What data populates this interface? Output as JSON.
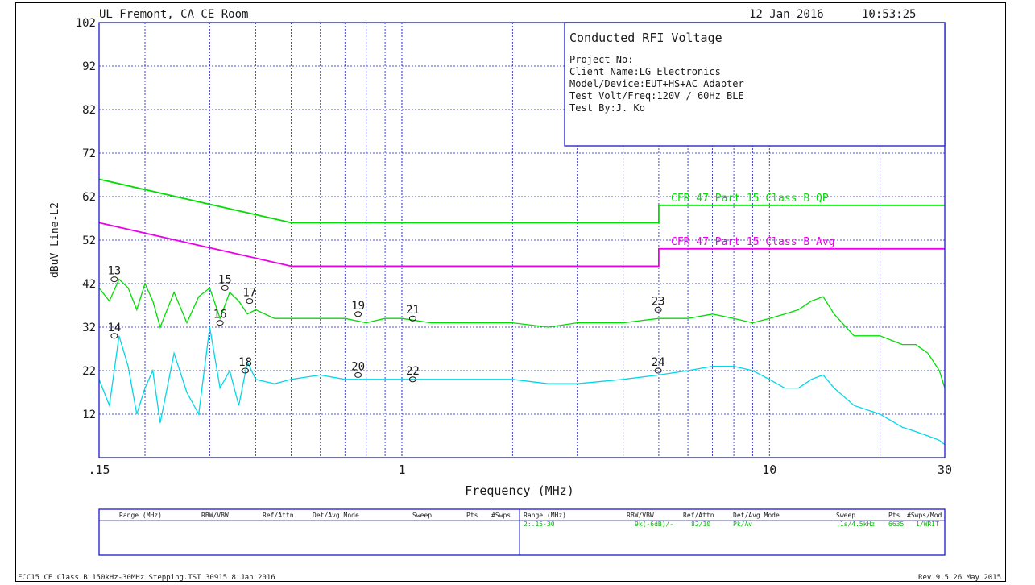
{
  "header": {
    "site": "UL Fremont, CA CE Room",
    "date": "12 Jan 2016",
    "time": "10:53:25"
  },
  "info_box": {
    "title": "Conducted RFI Voltage",
    "lines": [
      "Project No:",
      "Client Name:LG Electronics",
      "Model/Device:EUT+HS+AC Adapter",
      "Test Volt/Freq:120V / 60Hz BLE",
      "Test By:J. Ko"
    ]
  },
  "settings_table": {
    "headers": [
      "Range (MHz)",
      "RBW/VBW",
      "Ref/Attn",
      "Det/Avg Mode",
      "Sweep",
      "Pts",
      "#Swps/Mod"
    ],
    "left_headers": [
      "Range (MHz)",
      "RBW/VBW",
      "Ref/Attn",
      "Det/Avg Mode",
      "Sweep",
      "Pts",
      "#Swps"
    ],
    "row": [
      "2:.15-30",
      "9k(-6dB)/-",
      "82/10",
      "Pk/Av",
      ".1s/4.5kHz",
      "6635",
      "1/WRIT"
    ]
  },
  "footer": {
    "left": "FCC15 CE Class B 150kHz-30MHz Stepping.TST 30915  8 Jan 2016",
    "right": "Rev 9.5 26 May 2015"
  },
  "colors": {
    "peak": "#00dd00",
    "average": "#00d8e8",
    "qp_limit": "#00dd00",
    "avg_limit": "#ee00ee",
    "grid": "#1a1acc",
    "text": "#1a1a1a"
  },
  "chart_data": {
    "type": "line",
    "xscale": "log",
    "xlabel": "Frequency (MHz)",
    "ylabel": "dBuV Line-L2",
    "xlim": [
      0.15,
      30
    ],
    "ylim": [
      2,
      102
    ],
    "xtick_labels": [
      {
        "value": 0.15,
        "label": ".15"
      },
      {
        "value": 1,
        "label": "1"
      },
      {
        "value": 10,
        "label": "10"
      },
      {
        "value": 30,
        "label": "30"
      }
    ],
    "yticks": [
      12,
      22,
      32,
      42,
      52,
      62,
      72,
      82,
      92,
      102
    ],
    "grid": true,
    "limits": [
      {
        "name": "CFR 47 Part 15 Class B QP",
        "x": [
          0.15,
          0.5,
          0.5,
          5,
          5,
          30
        ],
        "y": [
          66,
          56,
          56,
          56,
          60,
          60
        ]
      },
      {
        "name": "CFR 47 Part 15 Class B Avg",
        "x": [
          0.15,
          0.5,
          0.5,
          5,
          5,
          30
        ],
        "y": [
          56,
          46,
          46,
          46,
          50,
          50
        ]
      }
    ],
    "series": [
      {
        "x": [
          0.15,
          0.16,
          0.17,
          0.18,
          0.19,
          0.2,
          0.21,
          0.22,
          0.24,
          0.26,
          0.28,
          0.3,
          0.32,
          0.34,
          0.36,
          0.38,
          0.4,
          0.45,
          0.5,
          0.6,
          0.7,
          0.8,
          0.9,
          1.0,
          1.2,
          1.5,
          2.0,
          2.5,
          3.0,
          4.0,
          5.0,
          6.0,
          7.0,
          8.0,
          9.0,
          10.0,
          11.0,
          12.0,
          13.0,
          14.0,
          15.0,
          17.0,
          20.0,
          23.0,
          25.0,
          27.0,
          29.0,
          30.0
        ],
        "y": [
          41,
          38,
          43,
          41,
          36,
          42,
          38,
          32,
          40,
          33,
          39,
          41,
          34,
          40,
          38,
          35,
          36,
          34,
          34,
          34,
          34,
          33,
          34,
          34,
          33,
          33,
          33,
          32,
          33,
          33,
          34,
          34,
          35,
          34,
          33,
          34,
          35,
          36,
          38,
          39,
          35,
          30,
          30,
          28,
          28,
          26,
          22,
          18
        ]
      },
      {
        "x": [
          0.15,
          0.16,
          0.17,
          0.18,
          0.19,
          0.2,
          0.21,
          0.22,
          0.24,
          0.26,
          0.28,
          0.3,
          0.32,
          0.34,
          0.36,
          0.38,
          0.4,
          0.45,
          0.5,
          0.6,
          0.7,
          0.8,
          0.9,
          1.0,
          1.2,
          1.5,
          2.0,
          2.5,
          3.0,
          4.0,
          5.0,
          6.0,
          7.0,
          8.0,
          9.0,
          10.0,
          11.0,
          12.0,
          13.0,
          14.0,
          15.0,
          17.0,
          20.0,
          23.0,
          25.0,
          27.0,
          29.0,
          30.0
        ],
        "y": [
          20,
          14,
          30,
          23,
          12,
          18,
          22,
          10,
          26,
          17,
          12,
          32,
          18,
          22,
          14,
          24,
          20,
          19,
          20,
          21,
          20,
          20,
          20,
          20,
          20,
          20,
          20,
          19,
          19,
          20,
          21,
          22,
          23,
          23,
          22,
          20,
          18,
          18,
          20,
          21,
          18,
          14,
          12,
          9,
          8,
          7,
          6,
          5
        ]
      }
    ],
    "markers": [
      {
        "label": "13",
        "x": 0.165,
        "y": 43
      },
      {
        "label": "14",
        "x": 0.165,
        "y": 30
      },
      {
        "label": "15",
        "x": 0.33,
        "y": 41
      },
      {
        "label": "16",
        "x": 0.32,
        "y": 33
      },
      {
        "label": "17",
        "x": 0.385,
        "y": 38
      },
      {
        "label": "18",
        "x": 0.375,
        "y": 22
      },
      {
        "label": "19",
        "x": 0.76,
        "y": 35
      },
      {
        "label": "20",
        "x": 0.76,
        "y": 21
      },
      {
        "label": "21",
        "x": 1.07,
        "y": 34
      },
      {
        "label": "22",
        "x": 1.07,
        "y": 20
      },
      {
        "label": "23",
        "x": 4.98,
        "y": 36
      },
      {
        "label": "24",
        "x": 4.98,
        "y": 22
      }
    ]
  }
}
